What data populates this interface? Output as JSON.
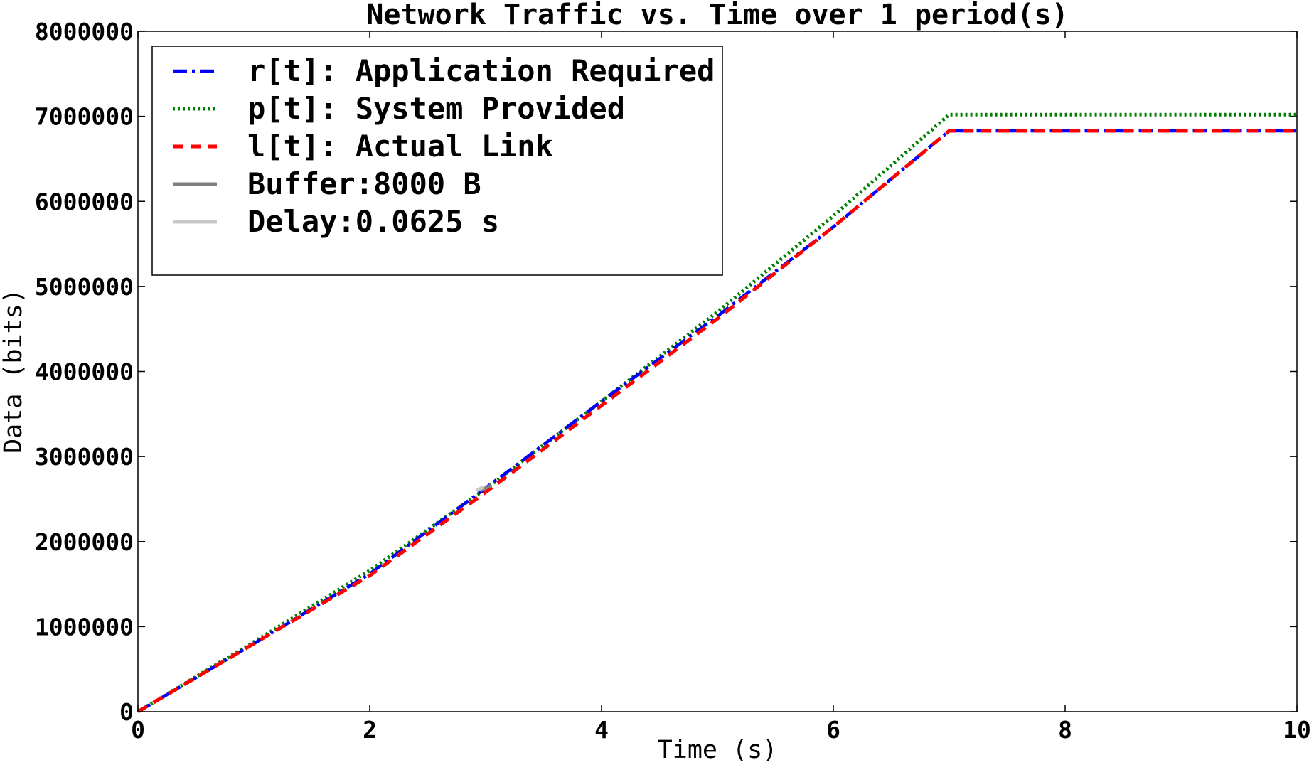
{
  "chart_data": {
    "type": "line",
    "title": "Network Traffic vs. Time over 1 period(s)",
    "xlabel": "Time (s)",
    "ylabel": "Data (bits)",
    "xlim": [
      0,
      10
    ],
    "ylim": [
      0,
      8000000
    ],
    "x_ticks": [
      "0",
      "2",
      "4",
      "6",
      "8",
      "10"
    ],
    "y_ticks": [
      "0",
      "1000000",
      "2000000",
      "3000000",
      "4000000",
      "5000000",
      "6000000",
      "7000000",
      "8000000"
    ],
    "grid": false,
    "legend_position": "top-left",
    "series": [
      {
        "name": "r[t]: Application Required",
        "color": "#0000ff",
        "style": "dash-dot",
        "x": [
          0,
          1,
          2,
          3,
          4,
          5,
          6,
          7,
          10
        ],
        "y": [
          0,
          800000,
          1620000,
          2630000,
          3650000,
          4650000,
          5700000,
          6830000,
          6830000
        ]
      },
      {
        "name": "p[t]: System Provided",
        "color": "#008000",
        "style": "dotted",
        "x": [
          0,
          1,
          2,
          3,
          4,
          5,
          6,
          7,
          10
        ],
        "y": [
          0,
          820000,
          1660000,
          2620000,
          3650000,
          4700000,
          5830000,
          7020000,
          7020000
        ]
      },
      {
        "name": "l[t]: Actual Link",
        "color": "#ff0000",
        "style": "dashed",
        "x": [
          0,
          1,
          2,
          3,
          4,
          5,
          6,
          7,
          10
        ],
        "y": [
          0,
          800000,
          1600000,
          2580000,
          3600000,
          4620000,
          5700000,
          6830000,
          6830000
        ]
      },
      {
        "name": "Buffer:8000 B",
        "color": "#808080",
        "style": "solid",
        "x": [
          2.95,
          3.05
        ],
        "y": [
          2600000,
          2660000
        ]
      },
      {
        "name": "Delay:0.0625 s",
        "color": "#c8c8c8",
        "style": "solid",
        "x": [
          2.92,
          2.98
        ],
        "y": [
          2600000,
          2640000
        ]
      }
    ]
  }
}
